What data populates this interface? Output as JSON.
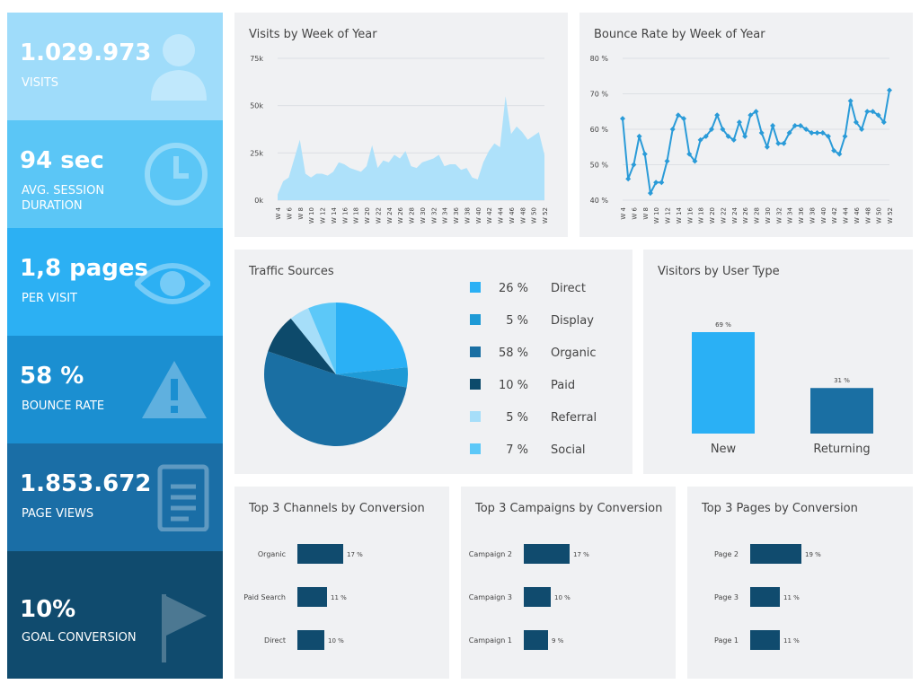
{
  "kpis": [
    {
      "value": "1.029.973",
      "label": "VISITS"
    },
    {
      "value": "94 sec",
      "label": "AVG. SESSION DURATION"
    },
    {
      "value": "1,8 pages",
      "label": "PER VISIT"
    },
    {
      "value": "58 %",
      "label": "BOUNCE RATE"
    },
    {
      "value": "1.853.672",
      "label": "PAGE VIEWS"
    },
    {
      "value": "10%",
      "label": "GOAL CONVERSION"
    }
  ],
  "chart_data": [
    {
      "type": "area",
      "title": "Visits by Week of Year",
      "color": "#aee1fa",
      "categories": [
        "W 4",
        null,
        "W 6",
        null,
        "W 8",
        null,
        "W 10",
        null,
        "W 12",
        null,
        "W 14",
        null,
        "W 16",
        null,
        "W 18",
        null,
        "W 20",
        null,
        "W 22",
        null,
        "W 24",
        null,
        "W 26",
        null,
        "W 28",
        null,
        "W 30",
        null,
        "W 32",
        null,
        "W 34",
        null,
        "W 36",
        null,
        "W 38",
        null,
        "W 40",
        null,
        "W 42",
        null,
        "W 44",
        null,
        "W 46",
        null,
        "W 48",
        null,
        "W 50",
        null,
        "W 52"
      ],
      "values": [
        3000,
        10000,
        12000,
        22000,
        32000,
        14000,
        12000,
        14000,
        14000,
        13000,
        15000,
        20000,
        19000,
        17000,
        16000,
        15000,
        18000,
        29000,
        17000,
        21000,
        20000,
        24000,
        22000,
        26000,
        18000,
        17000,
        20000,
        21000,
        22000,
        24000,
        18000,
        19000,
        19000,
        16000,
        17000,
        12000,
        11000,
        20000,
        26000,
        30000,
        28000,
        55000,
        35000,
        39000,
        36000,
        32000,
        34000,
        36000,
        24000
      ],
      "ylim": [
        0,
        75000
      ],
      "yticks": [
        {
          "value": 0,
          "label": "0k"
        },
        {
          "value": 25000,
          "label": "25k"
        },
        {
          "value": 50000,
          "label": "50k"
        },
        {
          "value": 75000,
          "label": "75k"
        }
      ]
    },
    {
      "type": "line",
      "title": "Bounce Rate by Week of Year",
      "color": "#2a9bd8",
      "categories": [
        "W 4",
        null,
        "W 6",
        null,
        "W 8",
        null,
        "W 10",
        null,
        "W 12",
        null,
        "W 14",
        null,
        "W 16",
        null,
        "W 18",
        null,
        "W 20",
        null,
        "W 22",
        null,
        "W 24",
        null,
        "W 26",
        null,
        "W 28",
        null,
        "W 30",
        null,
        "W 32",
        null,
        "W 34",
        null,
        "W 36",
        null,
        "W 38",
        null,
        "W 40",
        null,
        "W 42",
        null,
        "W 44",
        null,
        "W 46",
        null,
        "W 48",
        null,
        "W 50",
        null,
        "W 52"
      ],
      "values": [
        63,
        46,
        50,
        58,
        53,
        42,
        45,
        45,
        51,
        60,
        64,
        63,
        53,
        51,
        57,
        58,
        60,
        64,
        60,
        58,
        57,
        62,
        58,
        64,
        65,
        59,
        55,
        61,
        56,
        56,
        59,
        61,
        61,
        60,
        59,
        59,
        59,
        58,
        54,
        53,
        58,
        68,
        62,
        60,
        65,
        65,
        64,
        62,
        71
      ],
      "ylim": [
        40,
        80
      ],
      "yticks": [
        {
          "value": 40,
          "label": "40 %"
        },
        {
          "value": 50,
          "label": "50 %"
        },
        {
          "value": 60,
          "label": "60 %"
        },
        {
          "value": 70,
          "label": "70 %"
        },
        {
          "value": 80,
          "label": "80 %"
        }
      ]
    },
    {
      "type": "pie",
      "title": "Traffic Sources",
      "categories": [
        "Direct",
        "Display",
        "Organic",
        "Paid",
        "Referral",
        "Social"
      ],
      "values": [
        26,
        5,
        58,
        10,
        5,
        7
      ],
      "value_labels": [
        "26 %",
        "5 %",
        "58 %",
        "10 %",
        "5 %",
        "7 %"
      ],
      "colors": [
        "#2ab0f5",
        "#1e9ad6",
        "#1a6fa3",
        "#0d4a6b",
        "#a6def9",
        "#5cc8f8"
      ]
    },
    {
      "type": "bar",
      "title": "Visitors by User Type",
      "categories": [
        "New",
        "Returning"
      ],
      "values": [
        69,
        31
      ],
      "value_labels": [
        "69 %",
        "31 %"
      ],
      "colors": [
        "#2ab0f5",
        "#1a6fa3"
      ]
    },
    {
      "type": "hbar",
      "title": "Top 3 Channels by Conversion",
      "color": "#104b6e",
      "categories": [
        "Organic",
        "Paid Search",
        "Direct"
      ],
      "values": [
        17,
        11,
        10
      ],
      "value_labels": [
        "17 %",
        "11 %",
        "10 %"
      ]
    },
    {
      "type": "hbar",
      "title": "Top 3 Campaigns by Conversion",
      "color": "#104b6e",
      "categories": [
        "Campaign 2",
        "Campaign 3",
        "Campaign 1"
      ],
      "values": [
        17,
        10,
        9
      ],
      "value_labels": [
        "17 %",
        "10 %",
        "9 %"
      ]
    },
    {
      "type": "hbar",
      "title": "Top 3 Pages by Conversion",
      "color": "#104b6e",
      "categories": [
        "Page 2",
        "Page 3",
        "Page 1"
      ],
      "values": [
        19,
        11,
        11
      ],
      "value_labels": [
        "19 %",
        "11 %",
        "11 %"
      ]
    }
  ]
}
